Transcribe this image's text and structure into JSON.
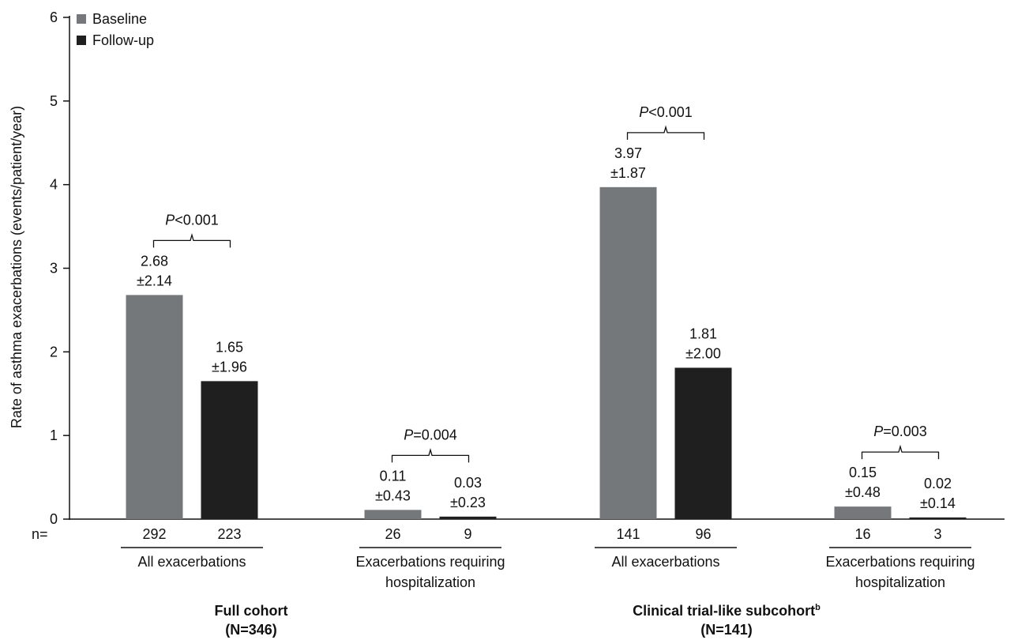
{
  "chart_data": {
    "type": "bar",
    "ylabel": "Rate of asthma exacerbations (events/patient/year)",
    "ylim": [
      0,
      6
    ],
    "yticks": [
      "0",
      "1",
      "2",
      "3",
      "4",
      "5",
      "6"
    ],
    "grid": false,
    "legend_position": "top-left",
    "n_label": "n=",
    "series": [
      {
        "name": "Baseline",
        "color": "#75787b"
      },
      {
        "name": "Follow-up",
        "color": "#1f1f1f"
      }
    ],
    "cohorts": [
      {
        "title": "Full cohort",
        "subtitle": "(N=346)",
        "groups": [
          {
            "category": "All exacerbations",
            "p_italic": "P",
            "p_rest": "<0.001",
            "bars": [
              {
                "series": "Baseline",
                "value": 2.68,
                "label1": "2.68",
                "label2": "±2.14",
                "n": "292"
              },
              {
                "series": "Follow-up",
                "value": 1.65,
                "label1": "1.65",
                "label2": "±1.96",
                "n": "223"
              }
            ]
          },
          {
            "category": "Exacerbations requiring",
            "category2": "hospitalization",
            "p_italic": "P",
            "p_rest": "=0.004",
            "bars": [
              {
                "series": "Baseline",
                "value": 0.11,
                "label1": "0.11",
                "label2": "±0.43",
                "n": "26"
              },
              {
                "series": "Follow-up",
                "value": 0.03,
                "label1": "0.03",
                "label2": "±0.23",
                "n": "9"
              }
            ]
          }
        ]
      },
      {
        "title": "Clinical trial-like subcohort",
        "title_sup": "b",
        "subtitle": "(N=141)",
        "groups": [
          {
            "category": "All exacerbations",
            "p_italic": "P",
            "p_rest": "<0.001",
            "bars": [
              {
                "series": "Baseline",
                "value": 3.97,
                "label1": "3.97",
                "label2": "±1.87",
                "n": "141"
              },
              {
                "series": "Follow-up",
                "value": 1.81,
                "label1": "1.81",
                "label2": "±2.00",
                "n": "96"
              }
            ]
          },
          {
            "category": "Exacerbations requiring",
            "category2": "hospitalization",
            "p_italic": "P",
            "p_rest": "=0.003",
            "bars": [
              {
                "series": "Baseline",
                "value": 0.15,
                "label1": "0.15",
                "label2": "±0.48",
                "n": "16"
              },
              {
                "series": "Follow-up",
                "value": 0.02,
                "label1": "0.02",
                "label2": "±0.14",
                "n": "3"
              }
            ]
          }
        ]
      }
    ]
  }
}
